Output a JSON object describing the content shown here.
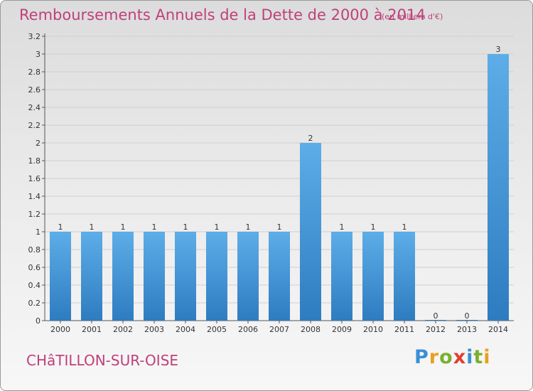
{
  "header": {
    "title": "Remboursements Annuels de la Dette de 2000 à 2014",
    "unit": "(en milliers d'€)"
  },
  "footer": {
    "commune": "CHâTILLON-SUR-OISE",
    "logo_letters": [
      "P",
      "r",
      "o",
      "x",
      "i",
      "t",
      "i"
    ],
    "logo_colors": [
      "#3a8fd8",
      "#e8a020",
      "#7ab030",
      "#e04030",
      "#3a8fd8",
      "#7ab030",
      "#e8a020"
    ]
  },
  "colors": {
    "bar_light": "#5dade8",
    "bar_dark": "#2e7cc0",
    "accent": "#c0407a"
  },
  "chart_data": {
    "type": "bar",
    "title": "Remboursements Annuels de la Dette de 2000 à 2014",
    "xlabel": "",
    "ylabel": "",
    "categories": [
      "2000",
      "2001",
      "2002",
      "2003",
      "2004",
      "2005",
      "2006",
      "2007",
      "2008",
      "2009",
      "2010",
      "2011",
      "2012",
      "2013",
      "2014"
    ],
    "values": [
      1,
      1,
      1,
      1,
      1,
      1,
      1,
      1,
      2,
      1,
      1,
      1,
      0,
      0,
      3
    ],
    "data_labels": [
      "1",
      "1",
      "1",
      "1",
      "1",
      "1",
      "1",
      "1",
      "2",
      "1",
      "1",
      "1",
      "0",
      "0",
      "3"
    ],
    "ylim": [
      0,
      3.2
    ],
    "yticks": [
      0,
      0.2,
      0.4,
      0.6,
      0.8,
      1,
      1.2,
      1.4,
      1.6,
      1.8,
      2,
      2.2,
      2.4,
      2.6,
      2.8,
      3,
      3.2
    ],
    "ytick_labels": [
      "0",
      "0.2",
      "0.4",
      "0.6",
      "0.8",
      "1",
      "1.2",
      "1.4",
      "1.6",
      "1.8",
      "2",
      "2.2",
      "2.4",
      "2.6",
      "2.8",
      "3",
      "3.2"
    ],
    "grid": true
  }
}
